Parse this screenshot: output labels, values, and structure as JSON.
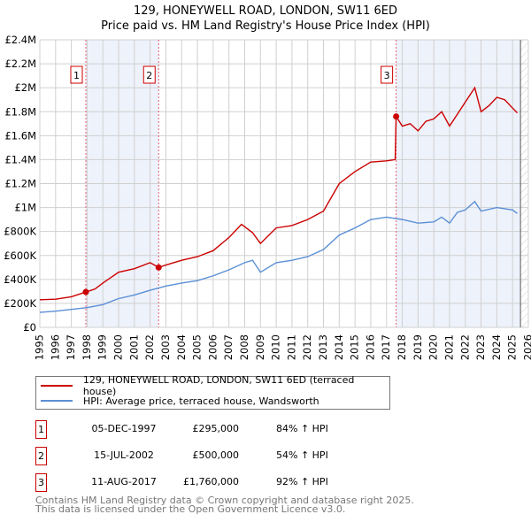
{
  "chart_data": {
    "type": "line",
    "title": "129, HONEYWELL ROAD, LONDON, SW11 6ED",
    "subtitle": "Price paid vs. HM Land Registry's House Price Index (HPI)",
    "xlim": [
      1995,
      2026
    ],
    "ylim": [
      0,
      2400000
    ],
    "x_ticks": [
      "1995",
      "1996",
      "1997",
      "1998",
      "1999",
      "2000",
      "2001",
      "2002",
      "2003",
      "2004",
      "2005",
      "2006",
      "2007",
      "2008",
      "2009",
      "2010",
      "2011",
      "2012",
      "2013",
      "2014",
      "2015",
      "2016",
      "2017",
      "2018",
      "2019",
      "2020",
      "2021",
      "2022",
      "2023",
      "2024",
      "2025",
      "2026"
    ],
    "y_ticks": [
      {
        "v": 0,
        "label": "£0"
      },
      {
        "v": 200000,
        "label": "£200K"
      },
      {
        "v": 400000,
        "label": "£400K"
      },
      {
        "v": 600000,
        "label": "£600K"
      },
      {
        "v": 800000,
        "label": "£800K"
      },
      {
        "v": 1000000,
        "label": "£1M"
      },
      {
        "v": 1200000,
        "label": "£1.2M"
      },
      {
        "v": 1400000,
        "label": "£1.4M"
      },
      {
        "v": 1600000,
        "label": "£1.6M"
      },
      {
        "v": 1800000,
        "label": "£1.8M"
      },
      {
        "v": 2000000,
        "label": "£2M"
      },
      {
        "v": 2200000,
        "label": "£2.2M"
      },
      {
        "v": 2400000,
        "label": "£2.4M"
      }
    ],
    "grid": true,
    "shaded_ranges": [
      [
        1997.92,
        2002.54
      ],
      [
        2017.61,
        2025.5
      ]
    ],
    "hatched_range": [
      2025.5,
      2026
    ],
    "series": [
      {
        "name": "129, HONEYWELL ROAD, LONDON, SW11 6ED (terraced house)",
        "color": "#cc0000",
        "x": [
          1995,
          1996,
          1997,
          1997.92,
          1998.5,
          1999,
          2000,
          2001,
          2002,
          2002.54,
          2003,
          2004,
          2005,
          2006,
          2007,
          2007.8,
          2008.5,
          2009,
          2010,
          2011,
          2012,
          2013,
          2014,
          2015,
          2016,
          2017,
          2017.55,
          2017.61,
          2018,
          2018.5,
          2019,
          2019.5,
          2020,
          2020.5,
          2021,
          2021.5,
          2022,
          2022.6,
          2023,
          2023.5,
          2024,
          2024.5,
          2025,
          2025.3
        ],
        "y": [
          230000,
          235000,
          255000,
          295000,
          320000,
          370000,
          460000,
          490000,
          540000,
          500000,
          520000,
          560000,
          590000,
          640000,
          750000,
          860000,
          790000,
          700000,
          830000,
          850000,
          900000,
          970000,
          1200000,
          1300000,
          1380000,
          1390000,
          1400000,
          1760000,
          1680000,
          1700000,
          1640000,
          1720000,
          1740000,
          1800000,
          1680000,
          1780000,
          1880000,
          2000000,
          1800000,
          1850000,
          1920000,
          1900000,
          1830000,
          1790000
        ]
      },
      {
        "name": "HPI: Average price, terraced house, Wandsworth",
        "color": "#5b8fd6",
        "x": [
          1995,
          1996,
          1997,
          1998,
          1999,
          2000,
          2001,
          2002,
          2003,
          2004,
          2005,
          2006,
          2007,
          2008,
          2008.5,
          2009,
          2010,
          2011,
          2012,
          2013,
          2014,
          2015,
          2016,
          2017,
          2018,
          2019,
          2020,
          2020.5,
          2021,
          2021.5,
          2022,
          2022.6,
          2023,
          2024,
          2025,
          2025.3
        ],
        "y": [
          125000,
          135000,
          150000,
          165000,
          190000,
          240000,
          270000,
          310000,
          345000,
          370000,
          390000,
          430000,
          480000,
          540000,
          560000,
          460000,
          540000,
          560000,
          590000,
          650000,
          770000,
          830000,
          900000,
          920000,
          900000,
          870000,
          880000,
          920000,
          870000,
          960000,
          980000,
          1050000,
          970000,
          1000000,
          980000,
          950000
        ]
      }
    ],
    "markers": [
      {
        "label": "1",
        "x": 1997.92,
        "y": 295000
      },
      {
        "label": "2",
        "x": 2002.54,
        "y": 500000
      },
      {
        "label": "3",
        "x": 2017.61,
        "y": 1760000
      }
    ]
  },
  "legend": [
    {
      "label": "129, HONEYWELL ROAD, LONDON, SW11 6ED (terraced house)",
      "color": "#cc0000"
    },
    {
      "label": "HPI: Average price, terraced house, Wandsworth",
      "color": "#5b8fd6"
    }
  ],
  "transactions": [
    {
      "num": "1",
      "date": "05-DEC-1997",
      "price": "£295,000",
      "hpi": "84% ↑ HPI"
    },
    {
      "num": "2",
      "date": "15-JUL-2002",
      "price": "£500,000",
      "hpi": "54% ↑ HPI"
    },
    {
      "num": "3",
      "date": "11-AUG-2017",
      "price": "£1,760,000",
      "hpi": "92% ↑ HPI"
    }
  ],
  "footer": [
    "Contains HM Land Registry data © Crown copyright and database right 2025.",
    "This data is licensed under the Open Government Licence v3.0."
  ]
}
